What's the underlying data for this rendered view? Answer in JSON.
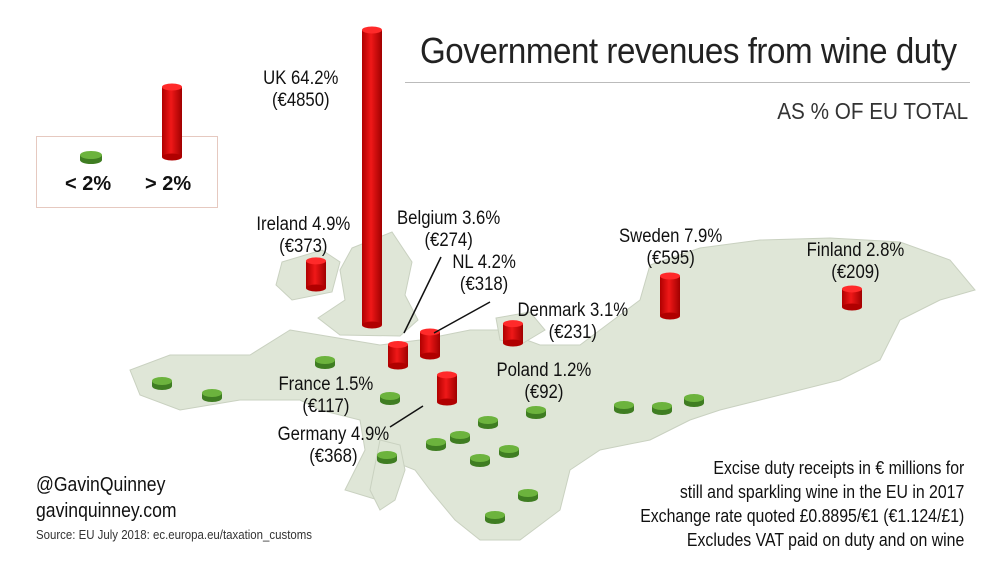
{
  "title": "Government revenues from wine duty",
  "subtitle": "AS % OF EU TOTAL",
  "legend": {
    "low_label": "< 2%",
    "high_label": "> 2%",
    "low_color": "#5a9e32",
    "high_color": "#e01010"
  },
  "countries": [
    {
      "name": "UK",
      "pct": 64.2,
      "label": "UK 64.2%",
      "value": "(€4850)"
    },
    {
      "name": "Ireland",
      "pct": 4.9,
      "label": "Ireland 4.9%",
      "value": "(€373)"
    },
    {
      "name": "Belgium",
      "pct": 3.6,
      "label": "Belgium 3.6%",
      "value": "(€274)"
    },
    {
      "name": "NL",
      "pct": 4.2,
      "label": "NL 4.2%",
      "value": "(€318)"
    },
    {
      "name": "Denmark",
      "pct": 3.1,
      "label": "Denmark 3.1%",
      "value": "(€231)"
    },
    {
      "name": "Sweden",
      "pct": 7.9,
      "label": "Sweden 7.9%",
      "value": "(€595)"
    },
    {
      "name": "Finland",
      "pct": 2.8,
      "label": "Finland 2.8%",
      "value": "(€209)"
    },
    {
      "name": "France",
      "pct": 1.5,
      "label": "France 1.5%",
      "value": "(€117)"
    },
    {
      "name": "Poland",
      "pct": 1.2,
      "label": "Poland 1.2%",
      "value": "(€92)"
    },
    {
      "name": "Germany",
      "pct": 4.9,
      "label": "Germany 4.9%",
      "value": "(€368)"
    }
  ],
  "credits": {
    "handle": "@GavinQuinney",
    "site": "gavinquinney.com",
    "source": "Source: EU July 2018: ec.europa.eu/taxation_customs"
  },
  "notes": [
    "Excise duty receipts in € millions for",
    "still and sparkling wine in the EU in 2017",
    "Exchange rate quoted £0.8895/€1 (€1.124/£1)",
    "Excludes VAT paid on duty and on wine"
  ]
}
